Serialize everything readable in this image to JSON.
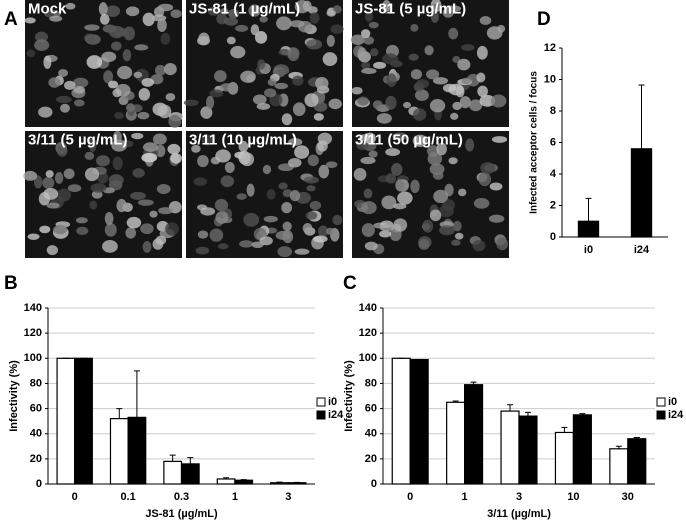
{
  "panel_labels": [
    "A",
    "B",
    "C",
    "D"
  ],
  "images": [
    "Mock",
    "JS-81 (1 µg/mL)",
    "JS-81 (5 µg/mL)",
    "3/11 (5 µg/mL)",
    "3/11 (10 µg/mL)",
    "3/11 (50 µg/mL)"
  ],
  "chart_data": [
    {
      "type": "bar",
      "ylabel": "Infectivity (%)",
      "xlabel": "JS-81 (µg/mL)",
      "categories": [
        "0",
        "0.1",
        "0.3",
        "1",
        "3"
      ],
      "series": [
        {
          "name": "i0",
          "color": "#ffffff",
          "values": [
            100,
            52,
            18,
            4,
            1
          ],
          "errors": [
            0,
            8,
            5,
            1,
            0.5
          ]
        },
        {
          "name": "i24",
          "color": "#000000",
          "values": [
            100,
            53,
            16,
            3,
            1
          ],
          "errors": [
            0,
            37,
            5,
            0.5,
            0.3
          ]
        }
      ],
      "ylim": [
        0,
        140
      ],
      "yticks": [
        0,
        20,
        40,
        60,
        80,
        100,
        120,
        140
      ],
      "grid": true,
      "legend": "right"
    },
    {
      "type": "bar",
      "ylabel": "Infectivity (%)",
      "xlabel": "3/11 (µg/mL)",
      "categories": [
        "0",
        "1",
        "3",
        "10",
        "30"
      ],
      "series": [
        {
          "name": "i0",
          "color": "#ffffff",
          "values": [
            100,
            65,
            58,
            41,
            28
          ],
          "errors": [
            0,
            1,
            5,
            4,
            2
          ]
        },
        {
          "name": "i24",
          "color": "#000000",
          "values": [
            99,
            79,
            54,
            55,
            36
          ],
          "errors": [
            0,
            2,
            3,
            1,
            1
          ]
        }
      ],
      "ylim": [
        0,
        140
      ],
      "yticks": [
        0,
        20,
        40,
        60,
        80,
        100,
        120,
        140
      ],
      "grid": true,
      "legend": "right"
    },
    {
      "type": "bar",
      "ylabel": "Infected acceptor cells / focus",
      "categories": [
        "i0",
        "i24"
      ],
      "values": [
        1.0,
        5.6
      ],
      "errors": [
        1.45,
        4.05
      ],
      "color": "#000000",
      "ylim": [
        0,
        12
      ],
      "yticks": [
        0,
        2,
        4,
        6,
        8,
        10,
        12
      ],
      "grid": false
    }
  ]
}
